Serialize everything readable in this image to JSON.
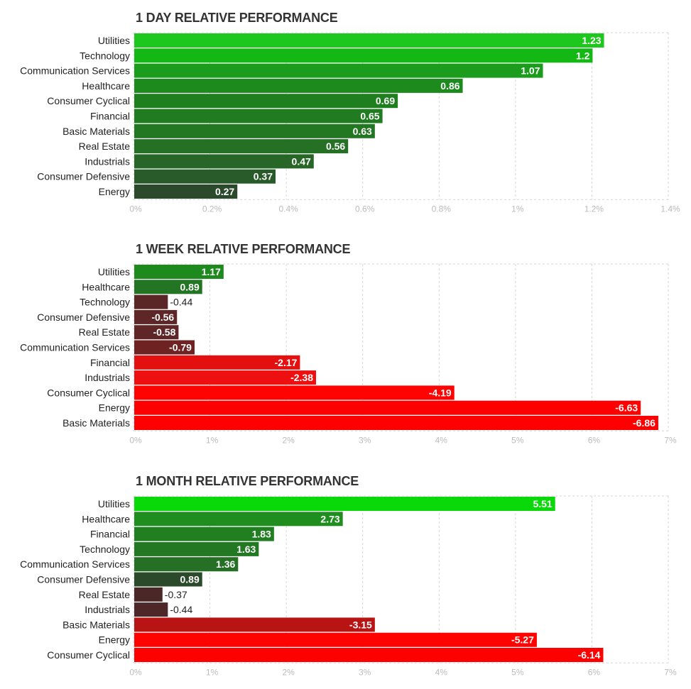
{
  "chart_data": [
    {
      "type": "bar",
      "orientation": "horizontal",
      "title": "1 DAY RELATIVE PERFORMANCE",
      "categories": [
        "Utilities",
        "Technology",
        "Communication Services",
        "Healthcare",
        "Consumer Cyclical",
        "Financial",
        "Basic Materials",
        "Real Estate",
        "Industrials",
        "Consumer Defensive",
        "Energy"
      ],
      "values": [
        1.23,
        1.2,
        1.07,
        0.86,
        0.69,
        0.65,
        0.63,
        0.56,
        0.47,
        0.37,
        0.27
      ],
      "value_labels": [
        "1.23",
        "1.2",
        "1.07",
        "0.86",
        "0.69",
        "0.65",
        "0.63",
        "0.56",
        "0.47",
        "0.37",
        "0.27"
      ],
      "colors": [
        "#1ec71e",
        "#14b814",
        "#1c9c1c",
        "#1d8a1d",
        "#1f7f1f",
        "#217b21",
        "#237723",
        "#257025",
        "#276627",
        "#295a29",
        "#2b4a2b"
      ],
      "xlim": [
        0,
        1.4
      ],
      "ticks": [
        "0%",
        "0.2%",
        "0.4%",
        "0.6%",
        "0.8%",
        "1%",
        "1.2%",
        "1.4%"
      ],
      "grid": true
    },
    {
      "type": "bar",
      "orientation": "horizontal",
      "title": "1 WEEK RELATIVE PERFORMANCE",
      "categories": [
        "Utilities",
        "Healthcare",
        "Technology",
        "Consumer Defensive",
        "Real Estate",
        "Communication Services",
        "Financial",
        "Industrials",
        "Consumer Cyclical",
        "Energy",
        "Basic Materials"
      ],
      "values": [
        1.17,
        0.89,
        -0.44,
        -0.56,
        -0.58,
        -0.79,
        -2.17,
        -2.38,
        -4.19,
        -6.63,
        -6.86
      ],
      "value_labels": [
        "1.17",
        "0.89",
        "-0.44",
        "-0.56",
        "-0.58",
        "-0.79",
        "-2.17",
        "-2.38",
        "-4.19",
        "-6.63",
        "-6.86"
      ],
      "colors": [
        "#1e8a1e",
        "#237523",
        "#5a2626",
        "#5e2626",
        "#5e2626",
        "#6e2222",
        "#e41010",
        "#ee1010",
        "#ff0202",
        "#ff0000",
        "#ff0000"
      ],
      "xlim": [
        0,
        7
      ],
      "ticks": [
        "0%",
        "1%",
        "2%",
        "3%",
        "4%",
        "5%",
        "6%",
        "7%"
      ],
      "grid": true
    },
    {
      "type": "bar",
      "orientation": "horizontal",
      "title": "1 MONTH RELATIVE PERFORMANCE",
      "categories": [
        "Utilities",
        "Healthcare",
        "Financial",
        "Technology",
        "Communication Services",
        "Consumer Defensive",
        "Real Estate",
        "Industrials",
        "Basic Materials",
        "Energy",
        "Consumer Cyclical"
      ],
      "values": [
        5.51,
        2.73,
        1.83,
        1.63,
        1.36,
        0.89,
        -0.37,
        -0.44,
        -3.15,
        -5.27,
        -6.14
      ],
      "value_labels": [
        "5.51",
        "2.73",
        "1.83",
        "1.63",
        "1.36",
        "0.89",
        "-0.37",
        "-0.44",
        "-3.15",
        "-5.27",
        "-6.14"
      ],
      "colors": [
        "#09d909",
        "#1f8e1f",
        "#217f21",
        "#237823",
        "#257025",
        "#2b4a2b",
        "#4a2828",
        "#4e2828",
        "#b81414",
        "#ff0202",
        "#ff0000"
      ],
      "xlim": [
        0,
        7
      ],
      "ticks": [
        "0%",
        "1%",
        "2%",
        "3%",
        "4%",
        "5%",
        "6%",
        "7%"
      ],
      "grid": true
    }
  ]
}
